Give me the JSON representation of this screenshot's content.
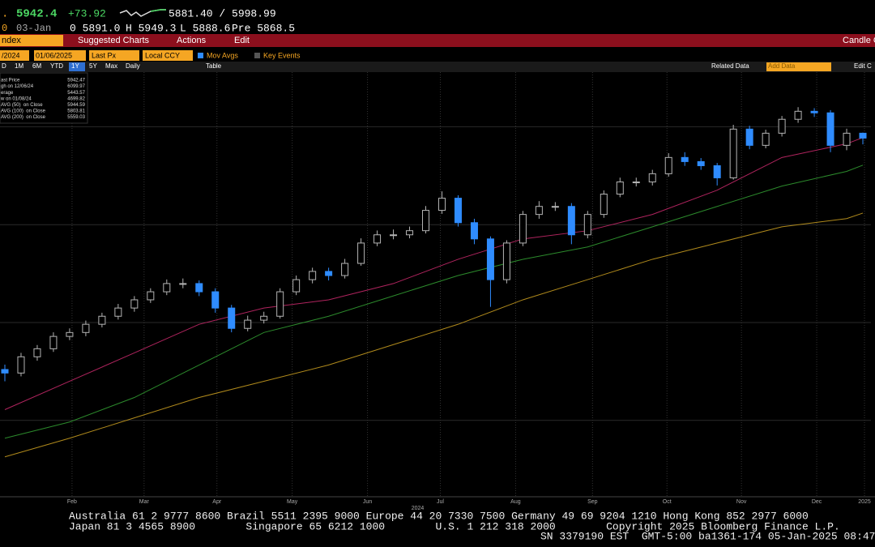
{
  "header": {
    "marker": ".",
    "last": "5942.4",
    "change": "+73.92",
    "bid_ask": "5881.40 / 5998.99",
    "row2": [
      "0",
      "03-Jan",
      "0 5891.0",
      "H 5949.3",
      "L 5888.6",
      "Pre 5868.5"
    ]
  },
  "toolbar": {
    "security": "ndex",
    "suggested": "Suggested Charts",
    "actions": "Actions",
    "edit": "Edit",
    "right": "Candle C"
  },
  "controls": {
    "start": "/2024",
    "end": "01/06/2025",
    "field": "Last Px",
    "currency": "Local CCY",
    "mov_avgs": "Mov Avgs",
    "key_events": "Key Events"
  },
  "ranges": {
    "buttons": [
      "D",
      "1M",
      "6M",
      "YTD",
      "1Y",
      "5Y",
      "Max"
    ],
    "period": "Daily",
    "table": "Table",
    "related": "Related Data",
    "add": "Add Data",
    "edit": "Edit C"
  },
  "legend_box": [
    {
      "label": "ast Price",
      "value": "5942.47"
    },
    {
      "label": "gh on 12/06/24",
      "value": "6099.97"
    },
    {
      "label": "erage",
      "value": "5443.57"
    },
    {
      "label": "w on 01/08/24",
      "value": "4699.82"
    },
    {
      "label": "AVG (50)  on Close",
      "value": "5944.59"
    },
    {
      "label": "AVG (100)  on Close",
      "value": "5803.81"
    },
    {
      "label": "AVG (200)  on Close",
      "value": "5559.03"
    }
  ],
  "chart_data": {
    "type": "candlestick",
    "up_color": "#b4b4b4",
    "down_color": "#2f8cff",
    "grid": true,
    "xlim": [
      -0.3,
      53.5
    ],
    "ylim": [
      4110,
      6279
    ],
    "yticks": [
      4500,
      5000,
      5500,
      6000
    ],
    "xticks": [
      {
        "value": 4.15,
        "label": "Feb"
      },
      {
        "value": 8.6,
        "label": "Mar"
      },
      {
        "value": 13.1,
        "label": "Apr"
      },
      {
        "value": 17.75,
        "label": "May"
      },
      {
        "value": 22.4,
        "label": "Jun"
      },
      {
        "value": 26.9,
        "label": "Jul"
      },
      {
        "value": 31.55,
        "label": "Aug"
      },
      {
        "value": 36.3,
        "label": "Sep"
      },
      {
        "value": 40.9,
        "label": "Oct"
      },
      {
        "value": 45.5,
        "label": "Nov"
      },
      {
        "value": 50.15,
        "label": "Dec"
      },
      {
        "value": 53.1,
        "label": "2025"
      }
    ],
    "year_label": {
      "value": 25.5,
      "label": "2024"
    },
    "open": [
      4760,
      4742,
      4825,
      4866,
      4929,
      4949,
      4991,
      5032,
      5074,
      5116,
      5157,
      5199,
      5199,
      5157,
      5074,
      4970,
      5012,
      5032,
      5157,
      5219,
      5261,
      5240,
      5302,
      5406,
      5448,
      5448,
      5469,
      5573,
      5635,
      5510,
      5427,
      5219,
      5406,
      5552,
      5593,
      5593,
      5448,
      5552,
      5656,
      5718,
      5718,
      5760,
      5843,
      5822,
      5801,
      5739,
      5988,
      5905,
      5967,
      6038,
      6079,
      6071,
      5905,
      5967
    ],
    "high": [
      4785,
      4845,
      4885,
      4950,
      4970,
      5010,
      5050,
      5095,
      5135,
      5175,
      5220,
      5225,
      5215,
      5175,
      5090,
      5035,
      5055,
      5175,
      5240,
      5280,
      5280,
      5325,
      5430,
      5470,
      5475,
      5490,
      5595,
      5670,
      5650,
      5530,
      5440,
      5420,
      5570,
      5620,
      5615,
      5610,
      5570,
      5675,
      5740,
      5740,
      5780,
      5865,
      5870,
      5840,
      5815,
      6010,
      6005,
      5985,
      6055,
      6099.97,
      6095,
      6085,
      5990,
      5970
    ],
    "low": [
      4699.82,
      4725,
      4805,
      4850,
      4910,
      4930,
      4975,
      5015,
      5055,
      5100,
      5140,
      5175,
      5135,
      5050,
      4950,
      4955,
      4995,
      5020,
      5140,
      5200,
      5215,
      5225,
      5290,
      5390,
      5425,
      5430,
      5455,
      5555,
      5490,
      5400,
      5080,
      5200,
      5390,
      5530,
      5570,
      5400,
      5430,
      5535,
      5640,
      5695,
      5700,
      5745,
      5800,
      5780,
      5700,
      5730,
      5885,
      5890,
      5950,
      6020,
      6050,
      5870,
      5880,
      5910
    ],
    "close": [
      4742,
      4825,
      4866,
      4929,
      4949,
      4991,
      5032,
      5074,
      5116,
      5157,
      5199,
      5199,
      5157,
      5074,
      4970,
      5012,
      5032,
      5157,
      5219,
      5261,
      5240,
      5302,
      5406,
      5448,
      5448,
      5469,
      5573,
      5635,
      5510,
      5427,
      5219,
      5406,
      5552,
      5593,
      5593,
      5448,
      5552,
      5656,
      5718,
      5718,
      5760,
      5843,
      5822,
      5801,
      5739,
      5988,
      5905,
      5967,
      6038,
      6079,
      6071,
      5905,
      5967,
      5942
    ],
    "series": [
      {
        "color": "#b0245e",
        "x": [
          0,
          4,
          8,
          12,
          16,
          20,
          24,
          28,
          32,
          36,
          40,
          44,
          48,
          52,
          53
        ],
        "values": [
          4555,
          4700,
          4845,
          4991,
          5074,
          5116,
          5199,
          5323,
          5427,
          5469,
          5552,
          5676,
          5843,
          5913,
          5944.59
        ]
      },
      {
        "color": "#2c8a2c",
        "x": [
          0,
          4,
          8,
          12,
          16,
          20,
          24,
          28,
          32,
          36,
          40,
          44,
          48,
          52,
          53
        ],
        "values": [
          4409,
          4492,
          4617,
          4783,
          4949,
          5032,
          5136,
          5240,
          5323,
          5386,
          5489,
          5593,
          5697,
          5772,
          5803.81
        ]
      },
      {
        "color": "#b08a1c",
        "x": [
          0,
          4,
          8,
          12,
          16,
          20,
          24,
          28,
          32,
          36,
          40,
          44,
          48,
          52,
          53
        ],
        "values": [
          4314,
          4409,
          4513,
          4617,
          4700,
          4783,
          4887,
          4991,
          5116,
          5219,
          5323,
          5406,
          5489,
          5531,
          5559.03
        ]
      }
    ]
  },
  "footer": {
    "lines": [
      "Australia 61 2 9777 8600 Brazil 5511 2395 9000 Europe 44 20 7330 7500 Germany 49 69 9204 1210 Hong Kong 852 2977 6000",
      "Japan 81 3 4565 8900        Singapore 65 6212 1000        U.S. 1 212 318 2000        Copyright 2025 Bloomberg Finance L.P.",
      "SN 3379190 EST  GMT-5:00 ba1361-174 05-Jan-2025 08:47"
    ]
  }
}
